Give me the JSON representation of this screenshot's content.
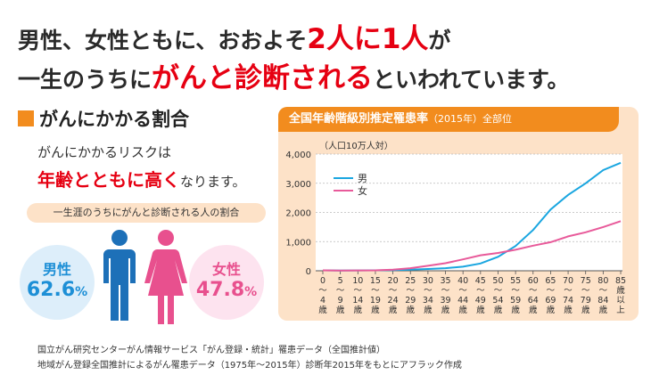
{
  "headline": {
    "line1_a": "男性、女性ともに、おおよそ",
    "line1_b": "2人に1人",
    "line1_c": "が",
    "line2_a": "一生のうちに",
    "line2_b": "がんと診断される",
    "line2_c": "といわれています。"
  },
  "section": {
    "title": "がんにかかる割合",
    "risk_line1": "がんにかかるリスクは",
    "risk_line2_emph": "年齢とともに高く",
    "risk_line2_rest": "なります。",
    "ratio_label": "一生涯のうちにがんと診断される人の割合"
  },
  "male": {
    "label": "男性",
    "value": "62.6",
    "unit": "%"
  },
  "female": {
    "label": "女性",
    "value": "47.8",
    "unit": "%"
  },
  "panel": {
    "title": "全国年齢階級別推定罹患率",
    "title_small": "（2015年）全部位"
  },
  "source": {
    "line1": "国立がん研究センターがん情報サービス「がん登録・統計」罹患データ（全国推計値）",
    "line2": "地域がん登録全国推計によるがん罹患データ（1975年～2015年）診断年2015年をもとにアフラック作成"
  },
  "colors": {
    "male": "#1aa6e0",
    "female": "#e85a9a",
    "accent": "#f28c1e",
    "red": "#e60012"
  },
  "chart_data": {
    "type": "line",
    "unit_label": "（人口10万人対）",
    "ylim": [
      0,
      4000
    ],
    "yticks": [
      "0",
      "1,000",
      "2,000",
      "3,000",
      "4,000"
    ],
    "categories": [
      [
        "0",
        "～",
        "4",
        "歳"
      ],
      [
        "5",
        "～",
        "9",
        "歳"
      ],
      [
        "10",
        "～",
        "14",
        "歳"
      ],
      [
        "15",
        "～",
        "19",
        "歳"
      ],
      [
        "20",
        "～",
        "24",
        "歳"
      ],
      [
        "25",
        "～",
        "29",
        "歳"
      ],
      [
        "30",
        "～",
        "34",
        "歳"
      ],
      [
        "35",
        "～",
        "39",
        "歳"
      ],
      [
        "40",
        "～",
        "44",
        "歳"
      ],
      [
        "45",
        "～",
        "49",
        "歳"
      ],
      [
        "50",
        "～",
        "54",
        "歳"
      ],
      [
        "55",
        "～",
        "59",
        "歳"
      ],
      [
        "60",
        "～",
        "64",
        "歳"
      ],
      [
        "65",
        "～",
        "69",
        "歳"
      ],
      [
        "70",
        "～",
        "74",
        "歳"
      ],
      [
        "75",
        "～",
        "79",
        "歳"
      ],
      [
        "80",
        "～",
        "84",
        "歳"
      ],
      [
        "85",
        "歳",
        "以",
        "上"
      ]
    ],
    "series": [
      {
        "name": "男",
        "color": "#1aa6e0",
        "values": [
          15,
          10,
          12,
          15,
          25,
          40,
          60,
          90,
          140,
          250,
          480,
          850,
          1400,
          2100,
          2600,
          3000,
          3450,
          3700
        ]
      },
      {
        "name": "女",
        "color": "#e85a9a",
        "values": [
          15,
          10,
          12,
          15,
          40,
          90,
          170,
          260,
          390,
          530,
          610,
          720,
          860,
          980,
          1180,
          1320,
          1500,
          1700
        ]
      }
    ],
    "legend_position": "top-left"
  }
}
